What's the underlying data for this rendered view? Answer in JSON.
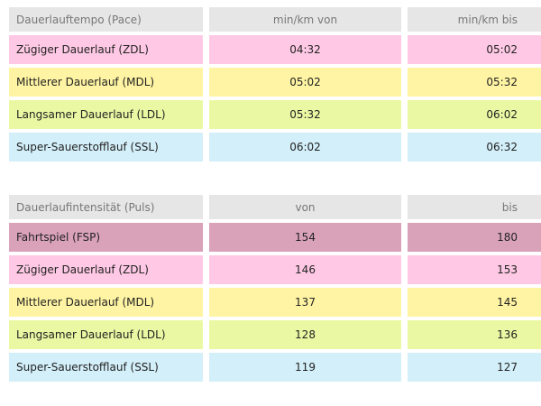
{
  "tables": [
    {
      "header": [
        "Dauerlauftempo (Pace)",
        "min/km von",
        "min/km bis"
      ],
      "rows": [
        {
          "cells": [
            "Zügiger Dauerlauf (ZDL)",
            "04:32",
            "05:02"
          ],
          "color": "#ffc9e5"
        },
        {
          "cells": [
            "Mittlerer Dauerlauf (MDL)",
            "05:02",
            "05:32"
          ],
          "color": "#fff4a3"
        },
        {
          "cells": [
            "Langsamer Dauerlauf (LDL)",
            "05:32",
            "06:02"
          ],
          "color": "#ebf8a3"
        },
        {
          "cells": [
            "Super-Sauerstofflauf (SSL)",
            "06:02",
            "06:32"
          ],
          "color": "#d3eff9"
        }
      ]
    },
    {
      "header": [
        "Dauerlaufintensität (Puls)",
        "von",
        "bis"
      ],
      "rows": [
        {
          "cells": [
            "Fahrtspiel (FSP)",
            "154",
            "180"
          ],
          "color": "#d9a2b9"
        },
        {
          "cells": [
            "Zügiger Dauerlauf (ZDL)",
            "146",
            "153"
          ],
          "color": "#ffc9e5"
        },
        {
          "cells": [
            "Mittlerer Dauerlauf (MDL)",
            "137",
            "145"
          ],
          "color": "#fff4a3"
        },
        {
          "cells": [
            "Langsamer Dauerlauf (LDL)",
            "128",
            "136"
          ],
          "color": "#ebf8a3"
        },
        {
          "cells": [
            "Super-Sauerstofflauf (SSL)",
            "119",
            "127"
          ],
          "color": "#d3eff9"
        }
      ]
    }
  ]
}
